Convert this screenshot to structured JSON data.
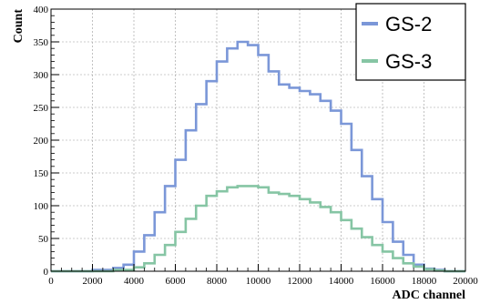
{
  "chart_data": {
    "type": "line",
    "title": "",
    "xlabel": "ADC channel",
    "ylabel": "Count",
    "xlim": [
      0,
      20000
    ],
    "ylim": [
      0,
      400
    ],
    "x_ticks": [
      "0",
      "2000",
      "4000",
      "6000",
      "8000",
      "10000",
      "12000",
      "14000",
      "16000",
      "18000",
      "20000"
    ],
    "y_ticks": [
      "0",
      "50",
      "100",
      "150",
      "200",
      "250",
      "300",
      "350",
      "400"
    ],
    "grid": true,
    "legend_position": "top-right",
    "series": [
      {
        "name": "GS-2",
        "color": "#7b97d8",
        "x": [
          0,
          1000,
          2000,
          3000,
          3500,
          4000,
          4500,
          5000,
          5500,
          6000,
          6500,
          7000,
          7500,
          8000,
          8500,
          9000,
          9500,
          10000,
          10500,
          11000,
          11500,
          12000,
          12500,
          13000,
          13500,
          14000,
          14500,
          15000,
          15500,
          16000,
          16500,
          17000,
          17500,
          18000,
          18500,
          19000,
          20000
        ],
        "y": [
          0,
          0,
          2,
          5,
          10,
          30,
          55,
          90,
          130,
          170,
          215,
          255,
          290,
          320,
          340,
          350,
          345,
          330,
          305,
          285,
          280,
          275,
          270,
          260,
          245,
          225,
          185,
          145,
          110,
          75,
          45,
          25,
          10,
          4,
          2,
          0,
          0
        ]
      },
      {
        "name": "GS-3",
        "color": "#86c5a4",
        "x": [
          0,
          2000,
          3000,
          4000,
          4500,
          5000,
          5500,
          6000,
          6500,
          7000,
          7500,
          8000,
          8500,
          9000,
          9500,
          10000,
          10500,
          11000,
          11500,
          12000,
          12500,
          13000,
          13500,
          14000,
          14500,
          15000,
          15500,
          16000,
          16500,
          17000,
          17500,
          18000,
          18500,
          19000,
          20000
        ],
        "y": [
          0,
          0,
          2,
          6,
          12,
          25,
          40,
          60,
          80,
          100,
          115,
          122,
          128,
          130,
          130,
          128,
          120,
          118,
          115,
          110,
          105,
          98,
          90,
          78,
          65,
          52,
          40,
          30,
          20,
          12,
          7,
          3,
          1,
          0,
          0
        ]
      }
    ]
  }
}
